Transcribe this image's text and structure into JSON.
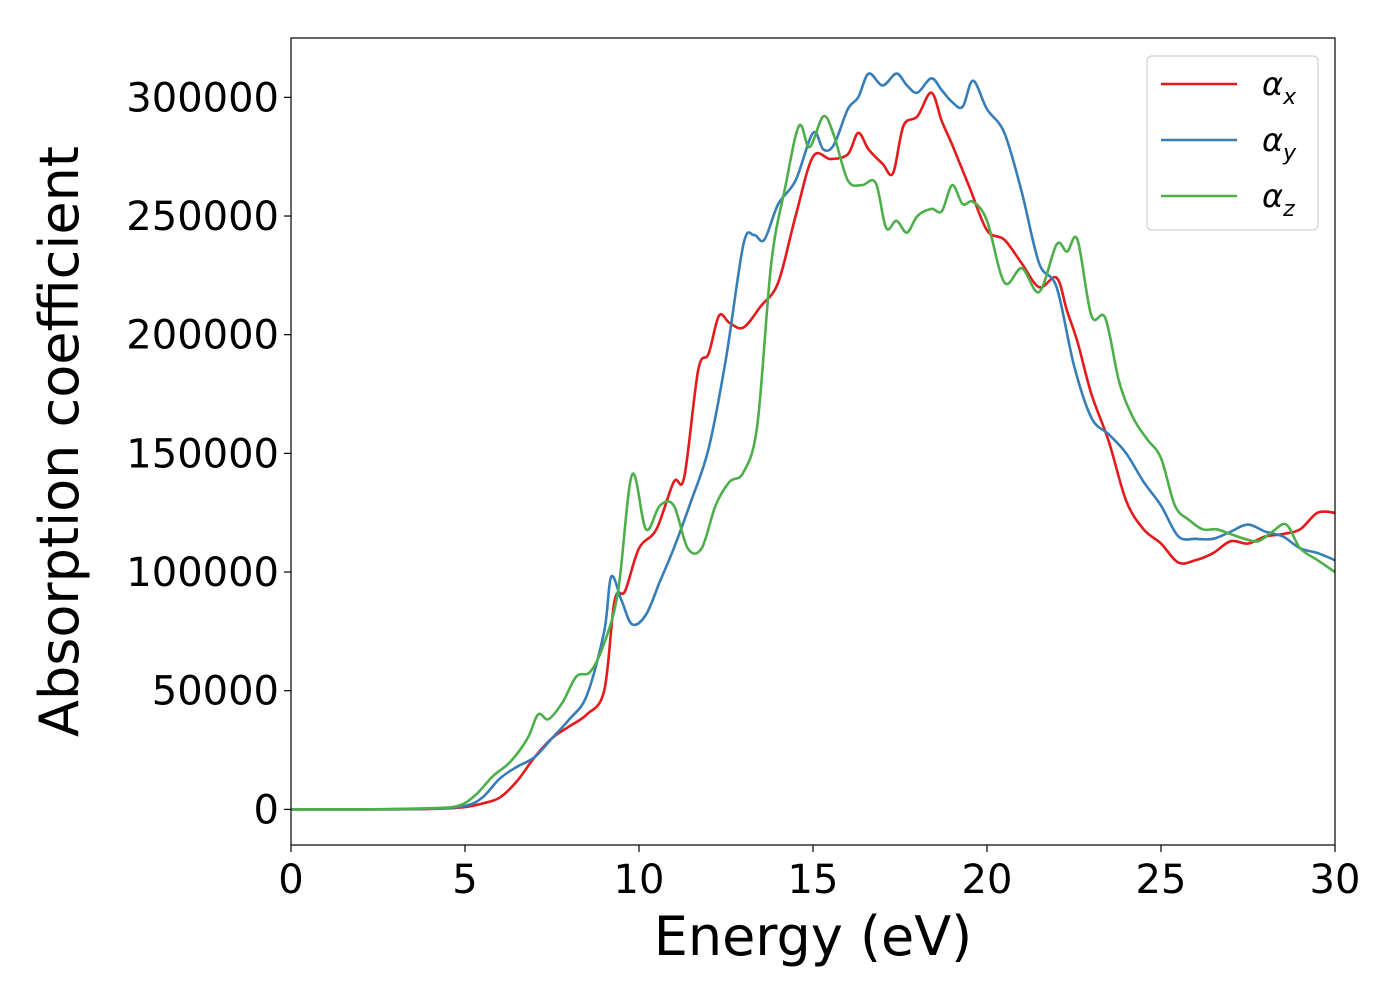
{
  "chart_data": {
    "type": "line",
    "title": "",
    "xlabel": "Energy (eV)",
    "ylabel": "Absorption coefficient",
    "xlim": [
      0,
      30
    ],
    "ylim": [
      -15000,
      325000
    ],
    "xticks": [
      0,
      5,
      10,
      15,
      20,
      25,
      30
    ],
    "yticks": [
      0,
      50000,
      100000,
      150000,
      200000,
      250000,
      300000
    ],
    "grid": false,
    "legend_position": "top-right",
    "series": [
      {
        "name": "α",
        "subscript": "x",
        "color": "#e41a1c",
        "x": [
          0,
          2,
          4,
          5,
          5.5,
          6,
          6.5,
          7,
          7.5,
          8,
          8.5,
          9,
          9.3,
          9.6,
          10,
          10.5,
          11,
          11.3,
          11.7,
          12,
          12.3,
          12.6,
          13,
          13.5,
          14,
          14.5,
          15,
          15.5,
          16,
          16.3,
          16.6,
          17,
          17.3,
          17.6,
          18,
          18.4,
          18.7,
          19,
          19.5,
          20,
          20.5,
          21,
          21.5,
          22,
          22.3,
          22.6,
          23,
          23.5,
          24,
          24.5,
          25,
          25.5,
          26,
          26.5,
          27,
          27.5,
          28,
          28.5,
          29,
          29.5,
          30
        ],
        "values": [
          0,
          0,
          200,
          1000,
          2500,
          5000,
          12000,
          22000,
          30000,
          35000,
          40000,
          50000,
          88000,
          92000,
          110000,
          118000,
          138000,
          140000,
          185000,
          192000,
          208000,
          205000,
          203000,
          212000,
          222000,
          250000,
          275000,
          274000,
          276000,
          285000,
          278000,
          272000,
          268000,
          288000,
          292000,
          302000,
          290000,
          280000,
          262000,
          244000,
          240000,
          230000,
          220000,
          224000,
          210000,
          197000,
          175000,
          155000,
          130000,
          118000,
          112000,
          104000,
          105000,
          108000,
          113000,
          112000,
          115000,
          116000,
          118000,
          125000,
          125000
        ]
      },
      {
        "name": "α",
        "subscript": "y",
        "color": "#377eb8",
        "x": [
          0,
          2,
          4,
          5,
          5.5,
          6,
          6.5,
          7,
          7.5,
          8,
          8.5,
          9,
          9.2,
          9.5,
          9.8,
          10.2,
          10.6,
          11,
          11.5,
          12,
          12.5,
          13,
          13.3,
          13.6,
          14,
          14.5,
          15,
          15.3,
          15.6,
          16,
          16.3,
          16.6,
          17,
          17.4,
          17.7,
          18,
          18.4,
          18.7,
          19,
          19.3,
          19.6,
          20,
          20.5,
          21,
          21.5,
          22,
          22.5,
          23,
          23.5,
          24,
          24.5,
          25,
          25.5,
          26,
          26.5,
          27,
          27.5,
          28,
          28.5,
          29,
          29.5,
          30
        ],
        "values": [
          0,
          0,
          300,
          1500,
          5000,
          13000,
          18000,
          22000,
          30000,
          38000,
          48000,
          75000,
          98000,
          88000,
          78000,
          82000,
          96000,
          110000,
          130000,
          152000,
          190000,
          238000,
          242000,
          240000,
          255000,
          265000,
          285000,
          278000,
          280000,
          295000,
          300000,
          310000,
          305000,
          310000,
          305000,
          302000,
          308000,
          303000,
          298000,
          296000,
          307000,
          295000,
          285000,
          260000,
          230000,
          220000,
          187000,
          165000,
          158000,
          150000,
          138000,
          128000,
          115000,
          114000,
          114000,
          117000,
          120000,
          117000,
          115000,
          110000,
          108000,
          105000
        ]
      },
      {
        "name": "α",
        "subscript": "z",
        "color": "#4daf4a",
        "x": [
          0,
          2,
          4,
          4.8,
          5.3,
          5.8,
          6.3,
          6.8,
          7.1,
          7.4,
          7.8,
          8.2,
          8.6,
          9,
          9.4,
          9.8,
          10.2,
          10.6,
          11,
          11.4,
          11.8,
          12.2,
          12.6,
          13,
          13.4,
          13.8,
          14.2,
          14.6,
          14.9,
          15.3,
          15.6,
          16,
          16.4,
          16.8,
          17.1,
          17.4,
          17.7,
          18,
          18.4,
          18.7,
          19,
          19.3,
          19.6,
          20,
          20.5,
          21,
          21.5,
          22,
          22.3,
          22.6,
          23,
          23.4,
          23.8,
          24.2,
          24.6,
          25,
          25.4,
          25.8,
          26.2,
          26.6,
          27,
          27.4,
          27.8,
          28.2,
          28.6,
          29,
          29.5,
          30
        ],
        "values": [
          0,
          0,
          500,
          1500,
          6000,
          14000,
          20000,
          30000,
          40000,
          38000,
          45000,
          56000,
          58000,
          70000,
          92000,
          141000,
          118000,
          128000,
          128000,
          110000,
          110000,
          128000,
          138000,
          142000,
          162000,
          230000,
          262000,
          288000,
          279000,
          292000,
          284000,
          265000,
          263000,
          264000,
          245000,
          248000,
          243000,
          250000,
          253000,
          252000,
          263000,
          255000,
          256000,
          248000,
          222000,
          228000,
          218000,
          238000,
          235000,
          240000,
          208000,
          207000,
          180000,
          165000,
          156000,
          148000,
          128000,
          122000,
          118000,
          118000,
          116000,
          114000,
          113000,
          117000,
          120000,
          110000,
          105000,
          100000
        ]
      }
    ]
  }
}
